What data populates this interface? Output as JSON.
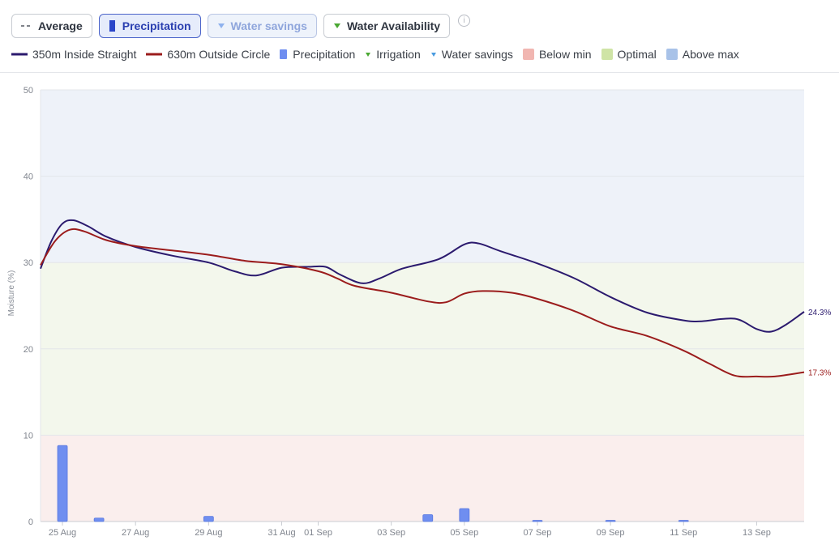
{
  "toolbar": {
    "average_label": "Average",
    "precipitation_label": "Precipitation",
    "water_savings_label": "Water savings",
    "water_availability_label": "Water Availability",
    "info_glyph": "i"
  },
  "legend": {
    "items": [
      {
        "label": "350m Inside Straight",
        "color": "#2b1a6e",
        "icon": "line"
      },
      {
        "label": "630m Outside Circle",
        "color": "#9b1c1c",
        "icon": "line"
      },
      {
        "label": "Precipitation",
        "color": "#6f8ef0",
        "icon": "bar"
      },
      {
        "label": "Irrigation",
        "color": "#4aa832",
        "icon": "triangle-down"
      },
      {
        "label": "Water savings",
        "color": "#4a9be0",
        "icon": "triangle-down"
      },
      {
        "label": "Below min",
        "color": "#f1b6b1",
        "icon": "box"
      },
      {
        "label": "Optimal",
        "color": "#cfe4a6",
        "icon": "box"
      },
      {
        "label": "Above max",
        "color": "#a8c2e8",
        "icon": "box"
      }
    ]
  },
  "chart_data": {
    "type": "line",
    "ylabel": "Moisture (%)",
    "ylim": [
      0,
      50
    ],
    "yticks": [
      0,
      10,
      20,
      30,
      40,
      50
    ],
    "xlim": [
      -0.6,
      20.3
    ],
    "xticks": [
      {
        "x": 0,
        "label": "25 Aug"
      },
      {
        "x": 2,
        "label": "27 Aug"
      },
      {
        "x": 4,
        "label": "29 Aug"
      },
      {
        "x": 6,
        "label": "31 Aug"
      },
      {
        "x": 7,
        "label": "01 Sep"
      },
      {
        "x": 9,
        "label": "03 Sep"
      },
      {
        "x": 11,
        "label": "05 Sep"
      },
      {
        "x": 13,
        "label": "07 Sep"
      },
      {
        "x": 15,
        "label": "09 Sep"
      },
      {
        "x": 17,
        "label": "11 Sep"
      },
      {
        "x": 19,
        "label": "13 Sep"
      }
    ],
    "bands": [
      {
        "name": "Below min",
        "from": 0,
        "to": 10,
        "color": "#faeeed"
      },
      {
        "name": "Optimal",
        "from": 10,
        "to": 30,
        "color": "#f3f7ec"
      },
      {
        "name": "Above max",
        "from": 30,
        "to": 50,
        "color": "#eef2f9"
      }
    ],
    "series": [
      {
        "name": "350m Inside Straight",
        "color": "#2b1a6e",
        "end_label": "24.3%",
        "points": [
          [
            -0.6,
            29.3
          ],
          [
            -0.3,
            32.5
          ],
          [
            0,
            34.5
          ],
          [
            0.3,
            34.9
          ],
          [
            0.7,
            34.2
          ],
          [
            1.2,
            33.0
          ],
          [
            2,
            31.8
          ],
          [
            3,
            30.8
          ],
          [
            4,
            30.0
          ],
          [
            4.7,
            29.0
          ],
          [
            5.3,
            28.5
          ],
          [
            6,
            29.4
          ],
          [
            6.7,
            29.5
          ],
          [
            7.2,
            29.5
          ],
          [
            7.6,
            28.6
          ],
          [
            8.2,
            27.6
          ],
          [
            8.7,
            28.2
          ],
          [
            9.3,
            29.3
          ],
          [
            10.3,
            30.4
          ],
          [
            11,
            32.1
          ],
          [
            11.4,
            32.2
          ],
          [
            12,
            31.3
          ],
          [
            13,
            29.9
          ],
          [
            14,
            28.2
          ],
          [
            15,
            26.0
          ],
          [
            16,
            24.2
          ],
          [
            17,
            23.3
          ],
          [
            17.5,
            23.2
          ],
          [
            18.4,
            23.5
          ],
          [
            19,
            22.3
          ],
          [
            19.4,
            22.0
          ],
          [
            19.8,
            22.8
          ],
          [
            20.3,
            24.3
          ]
        ]
      },
      {
        "name": "630m Outside Circle",
        "color": "#9b1c1c",
        "end_label": "17.3%",
        "points": [
          [
            -0.6,
            29.7
          ],
          [
            -0.2,
            32.5
          ],
          [
            0.2,
            33.8
          ],
          [
            0.6,
            33.6
          ],
          [
            1.2,
            32.6
          ],
          [
            2,
            31.9
          ],
          [
            3,
            31.4
          ],
          [
            4,
            30.9
          ],
          [
            5,
            30.2
          ],
          [
            6,
            29.8
          ],
          [
            7,
            29.0
          ],
          [
            7.5,
            28.2
          ],
          [
            8,
            27.3
          ],
          [
            9,
            26.5
          ],
          [
            10,
            25.5
          ],
          [
            10.5,
            25.4
          ],
          [
            11,
            26.4
          ],
          [
            11.5,
            26.7
          ],
          [
            12.3,
            26.5
          ],
          [
            13,
            25.8
          ],
          [
            14,
            24.4
          ],
          [
            15,
            22.6
          ],
          [
            16,
            21.5
          ],
          [
            17,
            19.8
          ],
          [
            17.7,
            18.3
          ],
          [
            18.4,
            16.9
          ],
          [
            19,
            16.8
          ],
          [
            19.5,
            16.8
          ],
          [
            20.3,
            17.3
          ]
        ]
      }
    ],
    "precipitation": {
      "name": "Precipitation",
      "color": "#6f8ef0",
      "x": [
        0,
        1,
        4,
        10,
        11,
        13,
        15,
        17
      ],
      "values": [
        8.8,
        0.4,
        0.6,
        0.8,
        1.5,
        0.1,
        0.1,
        0.1
      ]
    }
  }
}
